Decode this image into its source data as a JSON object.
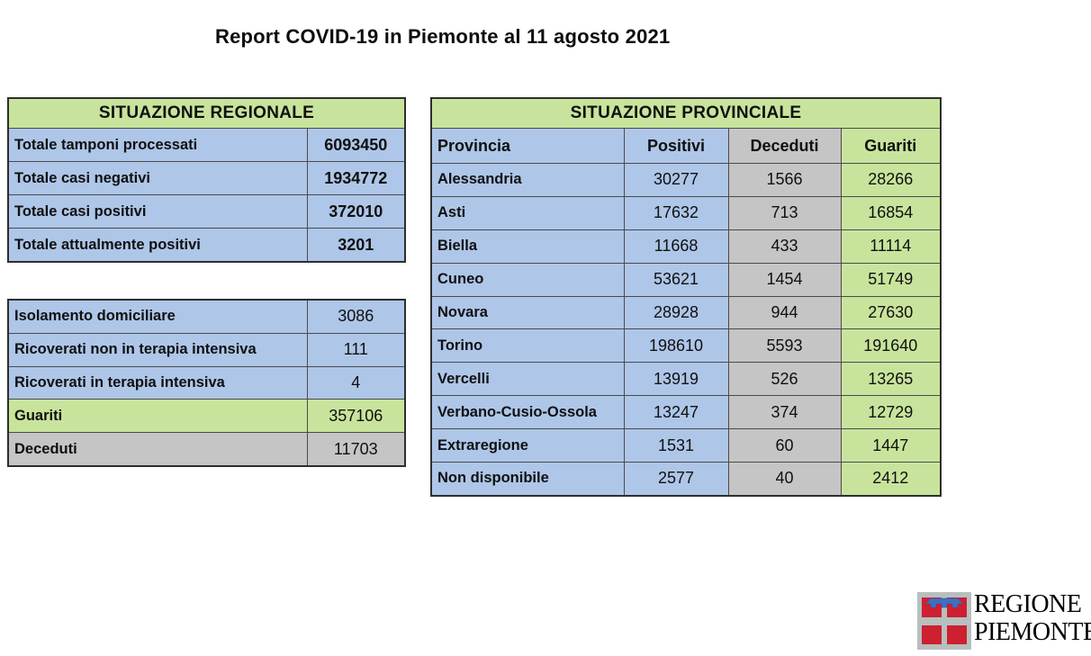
{
  "title": "Report COVID-19 in Piemonte al 11 agosto 2021",
  "colors": {
    "green": "#c8e49c",
    "blue": "#aec6e8",
    "gray": "#c5c5c5",
    "logo_red": "#cd2030",
    "logo_blue": "#3f6fc0",
    "logo_gray": "#b7bfbf"
  },
  "regional": {
    "header": "SITUAZIONE REGIONALE",
    "rows": [
      {
        "label": "Totale tamponi processati",
        "value": "6093450",
        "tone": "blue"
      },
      {
        "label": "Totale casi negativi",
        "value": "1934772",
        "tone": "blue"
      },
      {
        "label": "Totale casi positivi",
        "value": "372010",
        "tone": "blue"
      },
      {
        "label": "Totale attualmente positivi",
        "value": "3201",
        "tone": "blue"
      }
    ]
  },
  "detail": {
    "rows": [
      {
        "label": "Isolamento domiciliare",
        "value": "3086",
        "tone": "blue"
      },
      {
        "label": "Ricoverati non in terapia intensiva",
        "value": "111",
        "tone": "blue"
      },
      {
        "label": "Ricoverati in terapia intensiva",
        "value": "4",
        "tone": "blue"
      },
      {
        "label": "Guariti",
        "value": "357106",
        "tone": "green"
      },
      {
        "label": "Deceduti",
        "value": "11703",
        "tone": "gray"
      }
    ]
  },
  "provincial": {
    "header": "SITUAZIONE PROVINCIALE",
    "columns": [
      "Provincia",
      "Positivi",
      "Deceduti",
      "Guariti"
    ],
    "column_tones": [
      "blue",
      "blue",
      "gray",
      "green"
    ],
    "rows": [
      {
        "provincia": "Alessandria",
        "positivi": "30277",
        "deceduti": "1566",
        "guariti": "28266"
      },
      {
        "provincia": "Asti",
        "positivi": "17632",
        "deceduti": "713",
        "guariti": "16854"
      },
      {
        "provincia": "Biella",
        "positivi": "11668",
        "deceduti": "433",
        "guariti": "11114"
      },
      {
        "provincia": "Cuneo",
        "positivi": "53621",
        "deceduti": "1454",
        "guariti": "51749"
      },
      {
        "provincia": "Novara",
        "positivi": "28928",
        "deceduti": "944",
        "guariti": "27630"
      },
      {
        "provincia": "Torino",
        "positivi": "198610",
        "deceduti": "5593",
        "guariti": "191640"
      },
      {
        "provincia": "Vercelli",
        "positivi": "13919",
        "deceduti": "526",
        "guariti": "13265"
      },
      {
        "provincia": "Verbano-Cusio-Ossola",
        "positivi": "13247",
        "deceduti": "374",
        "guariti": "12729"
      },
      {
        "provincia": "Extraregione",
        "positivi": "1531",
        "deceduti": "60",
        "guariti": "1447"
      },
      {
        "provincia": "Non disponibile",
        "positivi": "2577",
        "deceduti": "40",
        "guariti": "2412"
      }
    ]
  },
  "logo": {
    "line1": "REGIONE",
    "line2": "PIEMONTE"
  }
}
